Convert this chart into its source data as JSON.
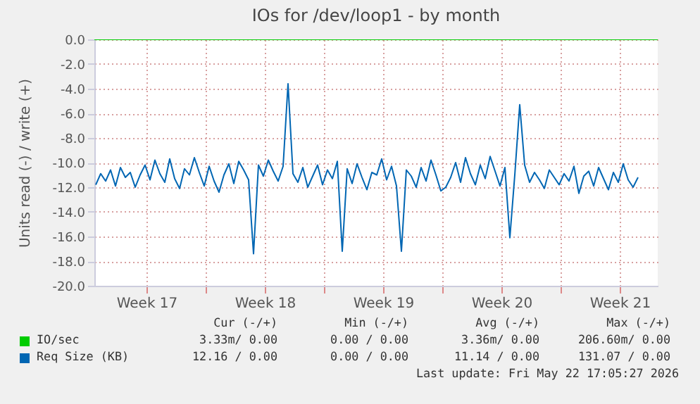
{
  "chart_data": {
    "type": "line",
    "title": "IOs for /dev/loop1 - by month",
    "ylabel": "Units read (-) / write (+)",
    "xlim": [
      "2026-04-20T10:00",
      "2026-05-23T18:00"
    ],
    "xticks": [
      {
        "value": "2026-04-23T12:00",
        "label": "Week 17"
      },
      {
        "value": "2026-04-27T00:00",
        "label": null
      },
      {
        "value": "2026-04-30T12:00",
        "label": "Week 18"
      },
      {
        "value": "2026-05-04T00:00",
        "label": null
      },
      {
        "value": "2026-05-07T12:00",
        "label": "Week 19"
      },
      {
        "value": "2026-05-11T00:00",
        "label": null
      },
      {
        "value": "2026-05-14T12:00",
        "label": "Week 20"
      },
      {
        "value": "2026-05-18T00:00",
        "label": null
      },
      {
        "value": "2026-05-21T12:00",
        "label": "Week 21"
      }
    ],
    "ylim": [
      -20,
      0
    ],
    "yticks": [
      {
        "value": -20,
        "label": "-20.0"
      },
      {
        "value": -18,
        "label": "-18.0"
      },
      {
        "value": -16,
        "label": "-16.0"
      },
      {
        "value": -14,
        "label": "-14.0"
      },
      {
        "value": -12,
        "label": "-12.0"
      },
      {
        "value": -10,
        "label": "-10.0"
      },
      {
        "value": -8,
        "label": "-8.0"
      },
      {
        "value": -6,
        "label": "-6.0"
      },
      {
        "value": -4,
        "label": "-4.0"
      },
      {
        "value": -2,
        "label": "-2.0"
      },
      {
        "value": 0,
        "label": "0.0"
      }
    ],
    "grid": true,
    "legend": "bottom",
    "line_style": "solid",
    "series": [
      {
        "name": "IO/sec",
        "color": "#00cc00",
        "x": [
          "2026-04-20T10:00",
          "2026-05-23T18:00"
        ],
        "values": [
          0,
          0
        ]
      },
      {
        "name": "Req Size (KB)",
        "color": "#0066b3",
        "x": [
          "2026-04-20T12:00",
          "2026-04-20T19:00",
          "2026-04-21T02:00",
          "2026-04-21T09:00",
          "2026-04-21T16:00",
          "2026-04-21T23:00",
          "2026-04-22T06:00",
          "2026-04-22T13:00",
          "2026-04-22T20:00",
          "2026-04-23T03:00",
          "2026-04-23T10:00",
          "2026-04-23T17:00",
          "2026-04-24T00:00",
          "2026-04-24T07:00",
          "2026-04-24T14:00",
          "2026-04-24T21:00",
          "2026-04-25T04:00",
          "2026-04-25T11:00",
          "2026-04-25T18:00",
          "2026-04-26T01:00",
          "2026-04-26T08:00",
          "2026-04-26T15:00",
          "2026-04-26T22:00",
          "2026-04-27T05:00",
          "2026-04-27T12:00",
          "2026-04-27T19:00",
          "2026-04-28T02:00",
          "2026-04-28T09:00",
          "2026-04-28T16:00",
          "2026-04-28T23:00",
          "2026-04-29T06:00",
          "2026-04-29T13:00",
          "2026-04-29T20:00",
          "2026-04-30T03:00",
          "2026-04-30T10:00",
          "2026-04-30T17:00",
          "2026-05-01T00:00",
          "2026-05-01T07:00",
          "2026-05-01T14:00",
          "2026-05-01T21:00",
          "2026-05-02T04:00",
          "2026-05-02T11:00",
          "2026-05-02T18:00",
          "2026-05-03T01:00",
          "2026-05-03T08:00",
          "2026-05-03T15:00",
          "2026-05-03T22:00",
          "2026-05-04T05:00",
          "2026-05-04T12:00",
          "2026-05-04T19:00",
          "2026-05-05T02:00",
          "2026-05-05T09:00",
          "2026-05-05T16:00",
          "2026-05-05T23:00",
          "2026-05-06T06:00",
          "2026-05-06T13:00",
          "2026-05-06T20:00",
          "2026-05-07T03:00",
          "2026-05-07T10:00",
          "2026-05-07T17:00",
          "2026-05-08T00:00",
          "2026-05-08T07:00",
          "2026-05-08T14:00",
          "2026-05-08T21:00",
          "2026-05-09T04:00",
          "2026-05-09T11:00",
          "2026-05-09T18:00",
          "2026-05-10T01:00",
          "2026-05-10T08:00",
          "2026-05-10T15:00",
          "2026-05-10T22:00",
          "2026-05-11T05:00",
          "2026-05-11T12:00",
          "2026-05-11T19:00",
          "2026-05-12T02:00",
          "2026-05-12T09:00",
          "2026-05-12T16:00",
          "2026-05-12T23:00",
          "2026-05-13T06:00",
          "2026-05-13T13:00",
          "2026-05-13T20:00",
          "2026-05-14T03:00",
          "2026-05-14T10:00",
          "2026-05-14T17:00",
          "2026-05-15T00:00",
          "2026-05-15T07:00",
          "2026-05-15T14:00",
          "2026-05-15T21:00",
          "2026-05-16T04:00",
          "2026-05-16T11:00",
          "2026-05-16T18:00",
          "2026-05-17T01:00",
          "2026-05-17T08:00",
          "2026-05-17T15:00",
          "2026-05-17T22:00",
          "2026-05-18T05:00",
          "2026-05-18T12:00",
          "2026-05-18T19:00",
          "2026-05-19T02:00",
          "2026-05-19T09:00",
          "2026-05-19T16:00",
          "2026-05-19T23:00",
          "2026-05-20T06:00",
          "2026-05-20T13:00",
          "2026-05-20T20:00",
          "2026-05-21T03:00",
          "2026-05-21T10:00",
          "2026-05-21T17:00",
          "2026-05-22T00:00",
          "2026-05-22T07:00",
          "2026-05-22T14:00"
        ],
        "values": [
          -11.8,
          -10.9,
          -11.5,
          -10.6,
          -11.9,
          -10.4,
          -11.2,
          -10.8,
          -12.0,
          -11.0,
          -10.2,
          -11.4,
          -9.8,
          -10.9,
          -11.6,
          -9.7,
          -11.3,
          -12.1,
          -10.5,
          -11.0,
          -9.6,
          -10.8,
          -11.9,
          -10.3,
          -11.5,
          -12.4,
          -11.0,
          -10.1,
          -11.7,
          -9.9,
          -10.6,
          -11.4,
          -17.4,
          -10.2,
          -11.1,
          -9.8,
          -10.7,
          -11.5,
          -10.3,
          -3.6,
          -10.9,
          -11.6,
          -10.4,
          -12.0,
          -11.1,
          -10.2,
          -11.8,
          -10.6,
          -11.3,
          -9.9,
          -17.2,
          -10.5,
          -11.7,
          -10.1,
          -11.2,
          -12.2,
          -10.8,
          -11.0,
          -9.7,
          -11.4,
          -10.3,
          -11.9,
          -17.2,
          -10.6,
          -11.1,
          -12.0,
          -10.4,
          -11.5,
          -9.8,
          -11.0,
          -12.3,
          -12.0,
          -11.2,
          -10.0,
          -11.6,
          -9.6,
          -10.9,
          -11.8,
          -10.2,
          -11.3,
          -9.5,
          -10.7,
          -11.9,
          -10.4,
          -16.1,
          -11.0,
          -5.3,
          -10.2,
          -11.6,
          -10.8,
          -11.4,
          -12.1,
          -10.6,
          -11.2,
          -11.8,
          -10.9,
          -11.5,
          -10.3,
          -12.5,
          -11.1,
          -10.7,
          -11.9,
          -10.4,
          -11.3,
          -12.2,
          -10.8,
          -11.6,
          -10.1,
          -11.4,
          -12.0,
          -11.2
        ]
      }
    ],
    "annotations": [
      "Cur (-/+)",
      "Min (-/+)",
      "Avg (-/+)",
      "Max (-/+)",
      "3.33m/ 0.00",
      "0.00 / 0.00",
      "3.36m/ 0.00",
      "206.60m/ 0.00",
      "12.16 / 0.00",
      "0.00 / 0.00",
      "11.14 / 0.00",
      "131.07 / 0.00",
      "Last update: Fri May 22 17:05:27 2026"
    ]
  }
}
